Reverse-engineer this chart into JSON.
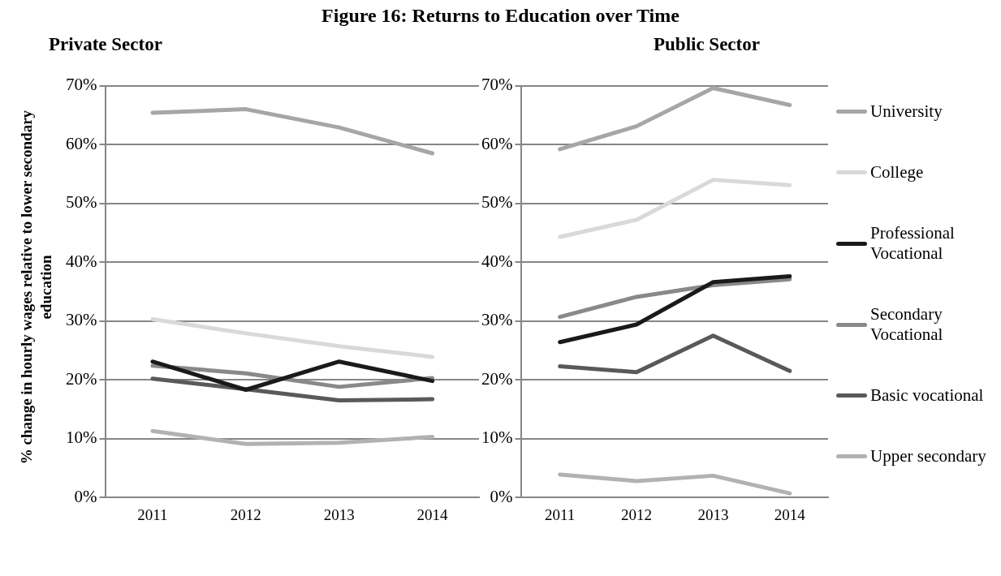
{
  "chart_data": [
    {
      "type": "line",
      "title": "Figure 16: Returns to Education over Time",
      "subtitle": "Private Sector",
      "ylabel": "% change in hourly wages relative to lower secondary education",
      "categories": [
        "2011",
        "2012",
        "2013",
        "2014"
      ],
      "series": [
        {
          "color": "#a6a6a6",
          "values": [
            65.4,
            66.0,
            62.9,
            58.5
          ]
        },
        {
          "color": "#d9d9d9",
          "values": [
            30.3,
            27.9,
            25.7,
            23.9
          ]
        },
        {
          "color": "#1a1a1a",
          "values": [
            23.1,
            18.3,
            23.1,
            19.8
          ]
        },
        {
          "color": "#898989",
          "values": [
            22.4,
            21.1,
            18.8,
            20.3
          ]
        },
        {
          "color": "#595959",
          "values": [
            20.2,
            18.4,
            16.5,
            16.7
          ]
        },
        {
          "color": "#b2b2b2",
          "values": [
            11.3,
            9.1,
            9.3,
            10.3
          ]
        }
      ],
      "ylim": [
        0,
        70
      ],
      "yticks": [
        {
          "value": 0,
          "label": "0%"
        },
        {
          "value": 10,
          "label": "10%"
        },
        {
          "value": 20,
          "label": "20%"
        },
        {
          "value": 30,
          "label": "30%"
        },
        {
          "value": 40,
          "label": "40%"
        },
        {
          "value": 50,
          "label": "50%"
        },
        {
          "value": 60,
          "label": "60%"
        },
        {
          "value": 70,
          "label": "70%"
        }
      ],
      "grid": "y",
      "legend": false,
      "marker": "none",
      "line_style": "solid"
    },
    {
      "type": "line",
      "subtitle": "Public Sector",
      "categories": [
        "2011",
        "2012",
        "2013",
        "2014"
      ],
      "series": [
        {
          "name": "University",
          "color": "#a6a6a6",
          "values": [
            59.2,
            63.1,
            69.6,
            66.7
          ]
        },
        {
          "name": "College",
          "color": "#d9d9d9",
          "values": [
            44.3,
            47.2,
            54.0,
            53.1
          ]
        },
        {
          "name": "Professional Vocational",
          "color": "#1a1a1a",
          "values": [
            26.4,
            29.4,
            36.6,
            37.6
          ]
        },
        {
          "name": "Secondary Vocational",
          "color": "#898989",
          "values": [
            30.7,
            34.1,
            36.1,
            37.1
          ]
        },
        {
          "name": "Basic vocational",
          "color": "#595959",
          "values": [
            22.3,
            21.3,
            27.5,
            21.5
          ]
        },
        {
          "name": "Upper secondary",
          "color": "#b2b2b2",
          "values": [
            3.9,
            2.8,
            3.7,
            0.7
          ]
        }
      ],
      "ylim": [
        0,
        70
      ],
      "yticks": [
        {
          "value": 0,
          "label": "0%"
        },
        {
          "value": 10,
          "label": "10%"
        },
        {
          "value": 20,
          "label": "20%"
        },
        {
          "value": 30,
          "label": "30%"
        },
        {
          "value": 40,
          "label": "40%"
        },
        {
          "value": 50,
          "label": "50%"
        },
        {
          "value": 60,
          "label": "60%"
        },
        {
          "value": 70,
          "label": "70%"
        }
      ],
      "grid": "y",
      "legend": "right",
      "marker": "none",
      "line_style": "solid"
    }
  ]
}
